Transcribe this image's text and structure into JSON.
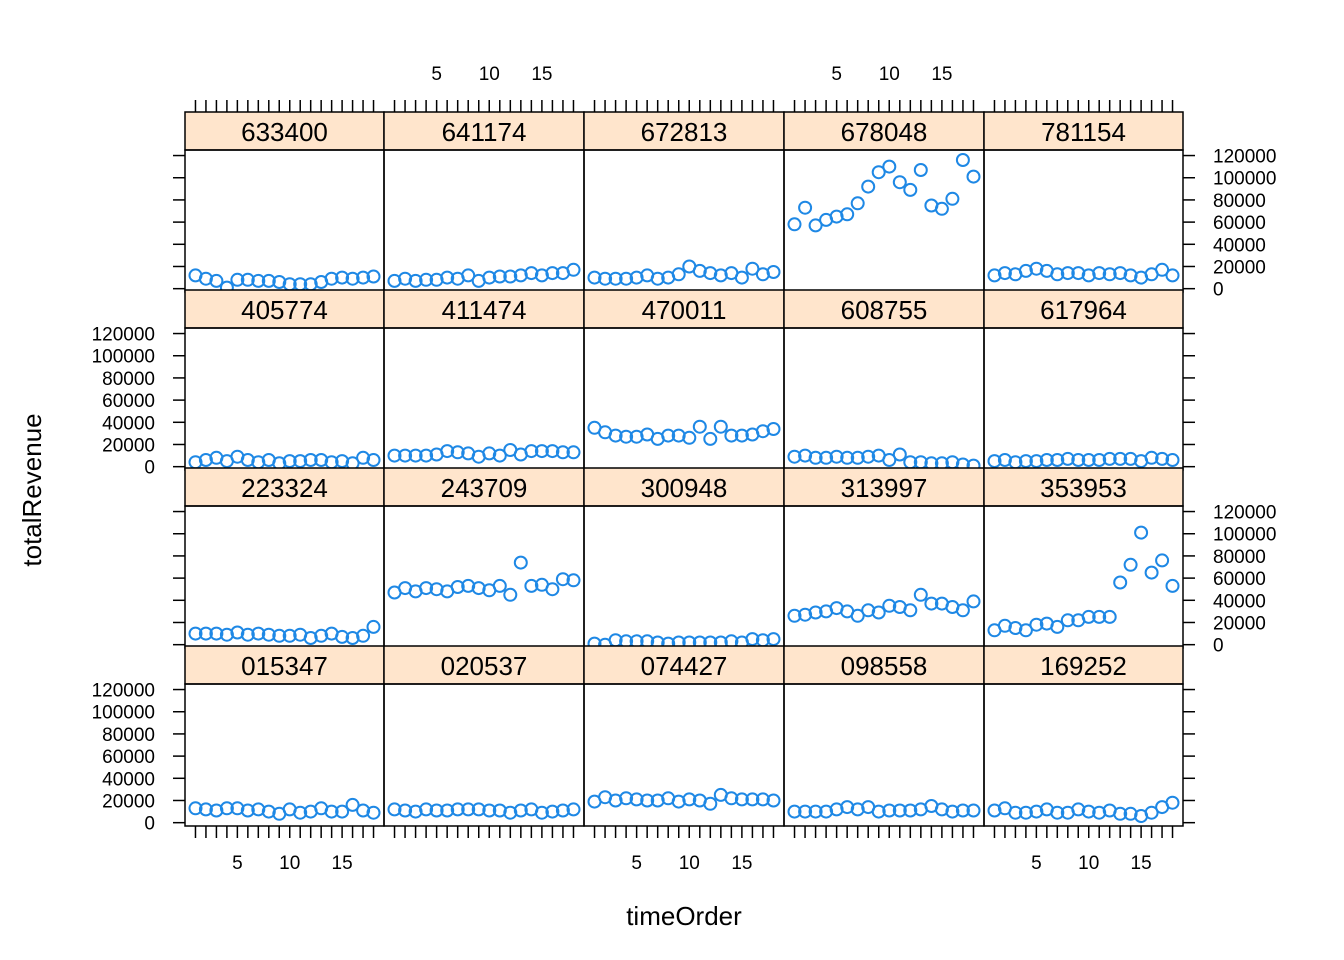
{
  "colors": {
    "point": "#1E88E5",
    "strip": "#FFE5CC",
    "frame": "#000000"
  },
  "chart_data": {
    "type": "scatter",
    "layout": "lattice-4x5",
    "xlabel": "timeOrder",
    "ylabel": "totalRevenue",
    "xlim": [
      0,
      19
    ],
    "ylim": [
      -3000,
      125000
    ],
    "xticks": [
      5,
      10,
      15
    ],
    "xtick_labels": [
      "5",
      "10",
      "15"
    ],
    "yticks": [
      0,
      20000,
      40000,
      60000,
      80000,
      100000,
      120000
    ],
    "ytick_labels": [
      "0",
      "20000",
      "40000",
      "60000",
      "80000",
      "100000",
      "120000"
    ],
    "x": [
      1,
      2,
      3,
      4,
      5,
      6,
      7,
      8,
      9,
      10,
      11,
      12,
      13,
      14,
      15,
      16,
      17,
      18
    ],
    "panels": [
      {
        "name": "633400",
        "values": [
          12000,
          9000,
          7000,
          1000,
          8000,
          8000,
          7000,
          7000,
          6000,
          4000,
          4000,
          4000,
          6000,
          9000,
          10000,
          9000,
          10000,
          11000
        ]
      },
      {
        "name": "641174",
        "values": [
          7000,
          9000,
          7000,
          8000,
          8000,
          10000,
          9000,
          12000,
          7000,
          10000,
          11000,
          11000,
          12000,
          14000,
          12000,
          14000,
          14000,
          17000
        ]
      },
      {
        "name": "672813",
        "values": [
          10000,
          9000,
          9000,
          9000,
          10000,
          12000,
          9000,
          10000,
          13000,
          20000,
          16000,
          14000,
          12000,
          14000,
          10000,
          18000,
          13000,
          15000
        ]
      },
      {
        "name": "678048",
        "values": [
          58000,
          73000,
          57000,
          62000,
          65000,
          67000,
          77000,
          92000,
          105000,
          110000,
          96000,
          89000,
          107000,
          75000,
          72000,
          81000,
          116000,
          101000
        ]
      },
      {
        "name": "781154",
        "values": [
          12000,
          14000,
          13000,
          16000,
          18000,
          16000,
          13000,
          14000,
          14000,
          12000,
          14000,
          13000,
          14000,
          12000,
          10000,
          13000,
          17000,
          12000
        ]
      },
      {
        "name": "405774",
        "values": [
          4000,
          6000,
          8000,
          5000,
          9000,
          6000,
          4000,
          6000,
          3000,
          5000,
          5000,
          6000,
          6000,
          4000,
          5000,
          3000,
          8000,
          6000
        ]
      },
      {
        "name": "411474",
        "values": [
          10000,
          10000,
          10000,
          10000,
          11000,
          14000,
          13000,
          12000,
          9000,
          12000,
          10000,
          15000,
          11000,
          14000,
          14000,
          14000,
          13000,
          13000
        ]
      },
      {
        "name": "470011",
        "values": [
          35000,
          31000,
          28000,
          27000,
          27000,
          29000,
          25000,
          28000,
          28000,
          26000,
          36000,
          25000,
          36000,
          28000,
          28000,
          29000,
          32000,
          34000
        ]
      },
      {
        "name": "608755",
        "values": [
          9000,
          10000,
          8000,
          8000,
          9000,
          8000,
          8000,
          9000,
          10000,
          6000,
          11000,
          4000,
          4000,
          3000,
          3000,
          4000,
          2000,
          1000
        ]
      },
      {
        "name": "617964",
        "values": [
          5000,
          6000,
          4000,
          5000,
          5000,
          6000,
          6000,
          7000,
          6000,
          6000,
          6000,
          7000,
          7000,
          7000,
          5000,
          8000,
          7000,
          6000
        ]
      },
      {
        "name": "223324",
        "values": [
          10000,
          10000,
          10000,
          9000,
          11000,
          9000,
          10000,
          9000,
          8000,
          8000,
          9000,
          6000,
          8000,
          10000,
          7000,
          6000,
          8000,
          16000
        ]
      },
      {
        "name": "243709",
        "values": [
          47000,
          51000,
          48000,
          51000,
          50000,
          48000,
          52000,
          53000,
          51000,
          49000,
          53000,
          45000,
          74000,
          53000,
          54000,
          50000,
          59000,
          58000
        ]
      },
      {
        "name": "300948",
        "values": [
          1000,
          0,
          4000,
          3000,
          3000,
          3000,
          2000,
          1000,
          2000,
          2000,
          2000,
          2000,
          2000,
          3000,
          2000,
          5000,
          4000,
          5000
        ]
      },
      {
        "name": "313997",
        "values": [
          26000,
          27000,
          29000,
          30000,
          33000,
          30000,
          26000,
          31000,
          29000,
          35000,
          34000,
          31000,
          45000,
          37000,
          37000,
          34000,
          31000,
          39000
        ]
      },
      {
        "name": "353953",
        "values": [
          13000,
          17000,
          15000,
          13000,
          18000,
          19000,
          16000,
          22000,
          22000,
          25000,
          25000,
          25000,
          56000,
          72000,
          101000,
          65000,
          76000,
          53000
        ]
      },
      {
        "name": "015347",
        "values": [
          13000,
          12000,
          11000,
          13000,
          13000,
          11000,
          12000,
          10000,
          8000,
          12000,
          9000,
          10000,
          13000,
          10000,
          10000,
          16000,
          11000,
          9000
        ]
      },
      {
        "name": "020537",
        "values": [
          12000,
          11000,
          10000,
          12000,
          11000,
          11000,
          12000,
          12000,
          12000,
          11000,
          11000,
          9000,
          11000,
          12000,
          9000,
          10000,
          11000,
          12000
        ]
      },
      {
        "name": "074427",
        "values": [
          19000,
          23000,
          20000,
          22000,
          21000,
          20000,
          20000,
          22000,
          19000,
          21000,
          20000,
          17000,
          25000,
          22000,
          21000,
          21000,
          21000,
          20000
        ]
      },
      {
        "name": "098558",
        "values": [
          10000,
          10000,
          10000,
          10000,
          12000,
          14000,
          12000,
          14000,
          10000,
          11000,
          11000,
          11000,
          12000,
          15000,
          12000,
          10000,
          11000,
          11000
        ]
      },
      {
        "name": "169252",
        "values": [
          11000,
          13000,
          9000,
          9000,
          10000,
          12000,
          9000,
          9000,
          12000,
          10000,
          9000,
          11000,
          8000,
          8000,
          6000,
          9000,
          14000,
          18000
        ]
      }
    ]
  }
}
